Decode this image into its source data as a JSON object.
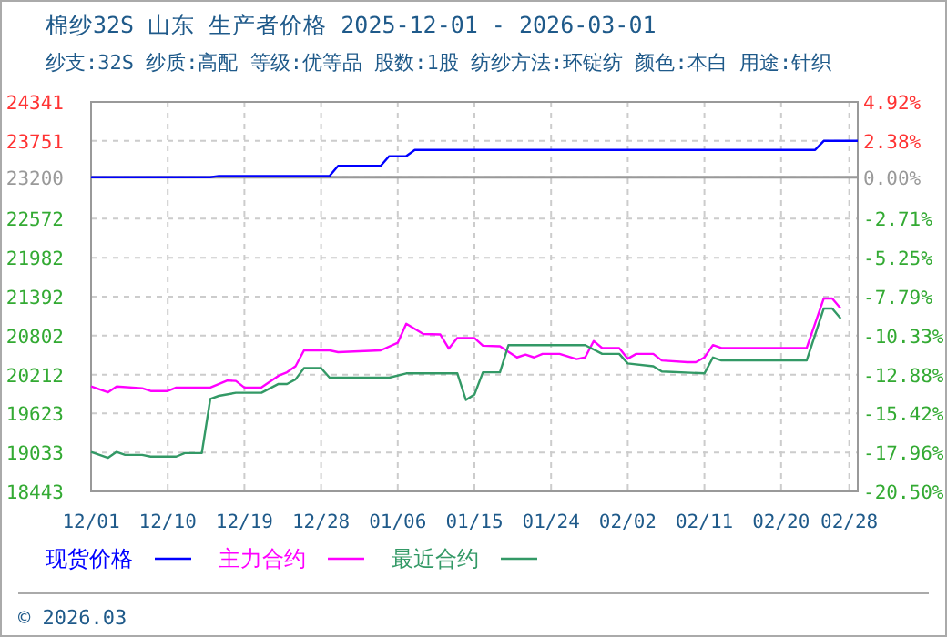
{
  "chart_data": {
    "type": "line",
    "title": "棉纱32S 山东 生产者价格 2025-12-01 - 2026-03-01",
    "subtitle": "纱支:32S 纱质:高配 等级:优等品 股数:1股 纺纱方法:环锭纺 颜色:本白 用途:针织",
    "xlim": [
      "2025-12-01",
      "2026-03-01"
    ],
    "xticks": [
      {
        "value": "2025-12-01",
        "label": "12/01"
      },
      {
        "value": "2025-12-10",
        "label": "12/10"
      },
      {
        "value": "2025-12-19",
        "label": "12/19"
      },
      {
        "value": "2025-12-28",
        "label": "12/28"
      },
      {
        "value": "2026-01-06",
        "label": "01/06"
      },
      {
        "value": "2026-01-15",
        "label": "01/15"
      },
      {
        "value": "2026-01-24",
        "label": "01/24"
      },
      {
        "value": "2026-02-02",
        "label": "02/02"
      },
      {
        "value": "2026-02-11",
        "label": "02/11"
      },
      {
        "value": "2026-02-20",
        "label": "02/20"
      },
      {
        "value": "2026-02-28",
        "label": "02/28"
      }
    ],
    "ylim": [
      18443,
      24341
    ],
    "yticks": [
      18443,
      19033,
      19623,
      20212,
      20802,
      21392,
      21982,
      22572,
      23200,
      23751,
      24341
    ],
    "y2lim": [
      -20.5,
      4.92
    ],
    "y2ticks": [
      {
        "value": -20.5,
        "label": "-20.50%"
      },
      {
        "value": -17.96,
        "label": "-17.96%"
      },
      {
        "value": -15.42,
        "label": "-15.42%"
      },
      {
        "value": -12.88,
        "label": "-12.88%"
      },
      {
        "value": -10.33,
        "label": "-10.33%"
      },
      {
        "value": -7.79,
        "label": "-7.79%"
      },
      {
        "value": -5.25,
        "label": "-5.25%"
      },
      {
        "value": -2.71,
        "label": "-2.71%"
      },
      {
        "value": 0,
        "label": "0.00%"
      },
      {
        "value": 2.38,
        "label": "2.38%"
      },
      {
        "value": 4.92,
        "label": "4.92%"
      }
    ],
    "ref_lines": [
      {
        "axis": "y",
        "value": 23200,
        "color": "#999999"
      }
    ],
    "grid": true,
    "legend": "bottom",
    "line_style": "solid",
    "marker": "none",
    "series": [
      {
        "name": "现货价格",
        "color": "#0000ff",
        "x": [
          "2025-12-01",
          "2025-12-15",
          "2025-12-16",
          "2025-12-29",
          "2025-12-30",
          "2026-01-04",
          "2026-01-05",
          "2026-01-07",
          "2026-01-08",
          "2026-02-24",
          "2026-02-25",
          "2026-03-01"
        ],
        "values": [
          23200,
          23200,
          23220,
          23220,
          23374,
          23374,
          23520,
          23520,
          23615,
          23615,
          23751,
          23751
        ]
      },
      {
        "name": "主力合约",
        "color": "#ff00ff",
        "x": [
          "2025-12-01",
          "2025-12-03",
          "2025-12-04",
          "2025-12-07",
          "2025-12-08",
          "2025-12-10",
          "2025-12-11",
          "2025-12-15",
          "2025-12-17",
          "2025-12-18",
          "2025-12-19",
          "2025-12-21",
          "2025-12-23",
          "2025-12-24",
          "2025-12-25",
          "2025-12-26",
          "2025-12-29",
          "2025-12-30",
          "2026-01-04",
          "2026-01-06",
          "2026-01-07",
          "2026-01-09",
          "2026-01-11",
          "2026-01-12",
          "2026-01-13",
          "2026-01-15",
          "2026-01-16",
          "2026-01-18",
          "2026-01-20",
          "2026-01-21",
          "2026-01-22",
          "2026-01-23",
          "2026-01-25",
          "2026-01-27",
          "2026-01-28",
          "2026-01-29",
          "2026-01-30",
          "2026-02-01",
          "2026-02-02",
          "2026-02-03",
          "2026-02-05",
          "2026-02-06",
          "2026-02-09",
          "2026-02-10",
          "2026-02-11",
          "2026-02-12",
          "2026-02-13",
          "2026-02-23",
          "2026-02-25",
          "2026-02-26",
          "2026-02-27"
        ],
        "values": [
          20032,
          19944,
          20032,
          20005,
          19963,
          19963,
          20016,
          20016,
          20123,
          20115,
          20016,
          20016,
          20194,
          20247,
          20338,
          20579,
          20579,
          20552,
          20579,
          20694,
          20981,
          20828,
          20820,
          20606,
          20767,
          20767,
          20649,
          20641,
          20472,
          20515,
          20472,
          20526,
          20526,
          20446,
          20472,
          20721,
          20614,
          20614,
          20453,
          20526,
          20526,
          20426,
          20399,
          20399,
          20472,
          20659,
          20614,
          20614,
          21364,
          21364,
          21212
        ]
      },
      {
        "name": "最近合约",
        "color": "#339966",
        "x": [
          "2025-12-01",
          "2025-12-03",
          "2025-12-04",
          "2025-12-05",
          "2025-12-07",
          "2025-12-08",
          "2025-12-11",
          "2025-12-12",
          "2025-12-14",
          "2025-12-15",
          "2025-12-16",
          "2025-12-18",
          "2025-12-21",
          "2025-12-23",
          "2025-12-24",
          "2025-12-25",
          "2025-12-26",
          "2025-12-28",
          "2025-12-29",
          "2026-01-05",
          "2026-01-07",
          "2026-01-13",
          "2026-01-14",
          "2026-01-15",
          "2026-01-16",
          "2026-01-18",
          "2026-01-19",
          "2026-01-28",
          "2026-01-30",
          "2026-02-01",
          "2026-02-02",
          "2026-02-05",
          "2026-02-06",
          "2026-02-11",
          "2026-02-12",
          "2026-02-13",
          "2026-02-23",
          "2026-02-25",
          "2026-02-26",
          "2026-02-27"
        ],
        "values": [
          19041,
          18952,
          19041,
          18996,
          18996,
          18970,
          18970,
          19024,
          19024,
          19845,
          19890,
          19936,
          19936,
          20070,
          20070,
          20140,
          20311,
          20311,
          20166,
          20166,
          20230,
          20230,
          19828,
          19909,
          20247,
          20247,
          20659,
          20659,
          20526,
          20526,
          20381,
          20338,
          20258,
          20230,
          20472,
          20426,
          20426,
          21212,
          21212,
          21060
        ]
      }
    ],
    "annotations": [
      "© 2026.03"
    ]
  }
}
